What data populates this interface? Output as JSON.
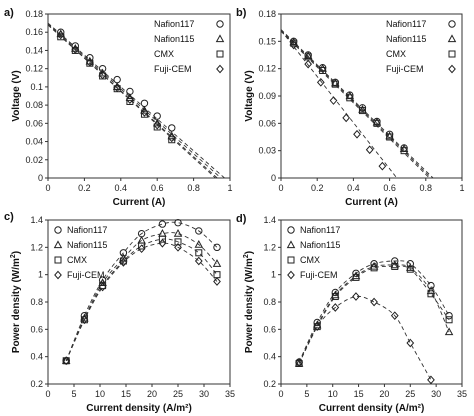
{
  "chart_data": [
    {
      "panel_label": "a)",
      "type": "scatter",
      "xlabel": "Current (A)",
      "ylabel": "Voltage (V)",
      "xlim": [
        0,
        1
      ],
      "ylim": [
        0,
        0.18
      ],
      "xticks": [
        "0",
        "0.2",
        "0.4",
        "0.6",
        "0.8",
        "1"
      ],
      "yticks": [
        "0",
        "0.02",
        "0.04",
        "0.06",
        "0.08",
        "0.1",
        "0.12",
        "0.14",
        "0.16",
        "0.18"
      ],
      "legend_position": "top-right",
      "series": [
        {
          "name": "Nafion117",
          "marker": "circle",
          "x": [
            0.07,
            0.15,
            0.23,
            0.3,
            0.38,
            0.45,
            0.53,
            0.6,
            0.68
          ],
          "y": [
            0.16,
            0.145,
            0.132,
            0.12,
            0.108,
            0.095,
            0.082,
            0.068,
            0.055
          ],
          "fit": [
            [
              0,
              0.17
            ],
            [
              0.97,
              0
            ]
          ]
        },
        {
          "name": "Nafion115",
          "marker": "triangle",
          "x": [
            0.07,
            0.15,
            0.23,
            0.3,
            0.38,
            0.45,
            0.53,
            0.6,
            0.68
          ],
          "y": [
            0.158,
            0.142,
            0.128,
            0.115,
            0.1,
            0.088,
            0.074,
            0.06,
            0.046
          ],
          "fit": [
            [
              0,
              0.169
            ],
            [
              0.95,
              0
            ]
          ]
        },
        {
          "name": "CMX",
          "marker": "square",
          "x": [
            0.07,
            0.15,
            0.23,
            0.3,
            0.38,
            0.45,
            0.53,
            0.6,
            0.68
          ],
          "y": [
            0.155,
            0.14,
            0.126,
            0.112,
            0.098,
            0.084,
            0.07,
            0.056,
            0.042
          ],
          "fit": [
            [
              0,
              0.168
            ],
            [
              0.93,
              0
            ]
          ]
        },
        {
          "name": "Fuji-CEM",
          "marker": "diamond",
          "x": [
            0.07,
            0.15,
            0.23,
            0.3,
            0.38,
            0.45,
            0.53,
            0.6,
            0.68
          ],
          "y": [
            0.157,
            0.141,
            0.127,
            0.113,
            0.099,
            0.086,
            0.072,
            0.058,
            0.044
          ],
          "fit": [
            [
              0,
              0.168
            ],
            [
              0.92,
              0
            ]
          ]
        }
      ]
    },
    {
      "panel_label": "b)",
      "type": "scatter",
      "xlabel": "Current (A)",
      "ylabel": "Voltage (V)",
      "xlim": [
        0,
        1
      ],
      "ylim": [
        0,
        0.18
      ],
      "xticks": [
        "0",
        "0.2",
        "0.4",
        "0.6",
        "0.8",
        "1"
      ],
      "yticks": [
        "0",
        "0.03",
        "0.06",
        "0.09",
        "0.12",
        "0.15",
        "0.18"
      ],
      "legend_position": "top-right",
      "series": [
        {
          "name": "Nafion117",
          "marker": "circle",
          "x": [
            0.07,
            0.15,
            0.23,
            0.3,
            0.38,
            0.45,
            0.53,
            0.6,
            0.68
          ],
          "y": [
            0.15,
            0.135,
            0.121,
            0.105,
            0.091,
            0.077,
            0.062,
            0.048,
            0.033
          ],
          "fit": [
            [
              0,
              0.163
            ],
            [
              0.84,
              0
            ]
          ]
        },
        {
          "name": "Nafion115",
          "marker": "triangle",
          "x": [
            0.07,
            0.15,
            0.23,
            0.3,
            0.38,
            0.45,
            0.53,
            0.6,
            0.68
          ],
          "y": [
            0.149,
            0.134,
            0.12,
            0.104,
            0.09,
            0.075,
            0.061,
            0.046,
            0.032
          ],
          "fit": [
            [
              0,
              0.162
            ],
            [
              0.83,
              0
            ]
          ]
        },
        {
          "name": "CMX",
          "marker": "square",
          "x": [
            0.07,
            0.15,
            0.23,
            0.3,
            0.38,
            0.45,
            0.53,
            0.6,
            0.68
          ],
          "y": [
            0.148,
            0.133,
            0.118,
            0.103,
            0.088,
            0.074,
            0.06,
            0.045,
            0.03
          ],
          "fit": [
            [
              0,
              0.161
            ],
            [
              0.82,
              0
            ]
          ]
        },
        {
          "name": "Fuji-CEM",
          "marker": "diamond",
          "x": [
            0.07,
            0.15,
            0.22,
            0.29,
            0.36,
            0.42,
            0.49,
            0.56
          ],
          "y": [
            0.146,
            0.125,
            0.105,
            0.085,
            0.066,
            0.048,
            0.031,
            0.013
          ],
          "fit": [
            [
              0,
              0.162
            ],
            [
              0.64,
              0
            ]
          ]
        }
      ]
    },
    {
      "panel_label": "c)",
      "type": "scatter",
      "xlabel": "Current density (A/m²)",
      "ylabel": "Power density (W/m²)",
      "xlim": [
        0,
        35
      ],
      "ylim": [
        0.2,
        1.4
      ],
      "xticks": [
        "0",
        "5",
        "10",
        "15",
        "20",
        "25",
        "30",
        "35"
      ],
      "yticks": [
        "0.2",
        "0.4",
        "0.6",
        "0.8",
        "1",
        "1.2",
        "1.4"
      ],
      "legend_position": "top-left",
      "series": [
        {
          "name": "Nafion117",
          "marker": "circle",
          "x": [
            3.5,
            7,
            10.5,
            14.5,
            18,
            22,
            25,
            29,
            32.5
          ],
          "y": [
            0.37,
            0.7,
            0.96,
            1.16,
            1.3,
            1.37,
            1.38,
            1.32,
            1.2
          ]
        },
        {
          "name": "Nafion115",
          "marker": "triangle",
          "x": [
            3.5,
            7,
            10.5,
            14.5,
            18,
            22,
            25,
            29,
            32.5
          ],
          "y": [
            0.37,
            0.68,
            0.94,
            1.12,
            1.25,
            1.3,
            1.3,
            1.22,
            1.08
          ]
        },
        {
          "name": "CMX",
          "marker": "square",
          "x": [
            3.5,
            7,
            10.5,
            14.5,
            18,
            22,
            25,
            29,
            32.5
          ],
          "y": [
            0.37,
            0.67,
            0.92,
            1.1,
            1.21,
            1.26,
            1.24,
            1.16,
            1.0
          ]
        },
        {
          "name": "Fuji-CEM",
          "marker": "diamond",
          "x": [
            3.5,
            7,
            10.5,
            14.5,
            18,
            22,
            25,
            29,
            32.5
          ],
          "y": [
            0.37,
            0.67,
            0.91,
            1.09,
            1.19,
            1.23,
            1.2,
            1.1,
            0.95
          ]
        }
      ]
    },
    {
      "panel_label": "d)",
      "type": "scatter",
      "xlabel": "Current density (A/m²)",
      "ylabel": "Power density (W/m²)",
      "xlim": [
        0,
        35
      ],
      "ylim": [
        0.2,
        1.4
      ],
      "xticks": [
        "0",
        "5",
        "10",
        "15",
        "20",
        "25",
        "30",
        "35"
      ],
      "yticks": [
        "0.2",
        "0.4",
        "0.6",
        "0.8",
        "1",
        "1.2",
        "1.4"
      ],
      "legend_position": "top-left",
      "series": [
        {
          "name": "Nafion117",
          "marker": "circle",
          "x": [
            3.5,
            7,
            10.5,
            14.5,
            18,
            22,
            25,
            29,
            32.5
          ],
          "y": [
            0.36,
            0.65,
            0.87,
            1.01,
            1.08,
            1.1,
            1.08,
            0.92,
            0.7
          ]
        },
        {
          "name": "Nafion115",
          "marker": "triangle",
          "x": [
            3.5,
            7,
            10.5,
            14.5,
            18,
            22,
            25,
            29,
            32.5
          ],
          "y": [
            0.35,
            0.63,
            0.85,
            0.99,
            1.06,
            1.07,
            1.05,
            0.88,
            0.58
          ]
        },
        {
          "name": "CMX",
          "marker": "square",
          "x": [
            3.5,
            7,
            10.5,
            14.5,
            18,
            22,
            25,
            29,
            32.5
          ],
          "y": [
            0.35,
            0.62,
            0.84,
            0.98,
            1.05,
            1.06,
            1.04,
            0.86,
            0.67
          ]
        },
        {
          "name": "Fuji-CEM",
          "marker": "diamond",
          "x": [
            3.5,
            7,
            10.5,
            14.5,
            18,
            22,
            25,
            29
          ],
          "y": [
            0.36,
            0.62,
            0.76,
            0.84,
            0.8,
            0.7,
            0.5,
            0.23
          ]
        }
      ]
    }
  ]
}
